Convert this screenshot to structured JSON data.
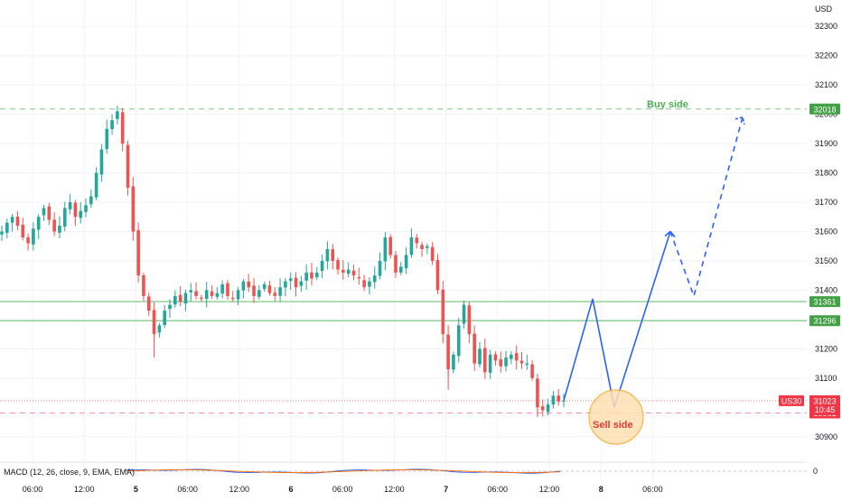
{
  "currency": "USD",
  "symbol": "US30",
  "colors": {
    "up": "#26a69a",
    "down": "#ef5350",
    "buy_line": "#81c784",
    "buy_text": "#4caf50",
    "level_line": "#66bb6a",
    "level_badge": "#43a047",
    "sell_line": "#f48fb1",
    "sell_badge": "#f23645",
    "sell_text": "#e53935",
    "projection": "#2962ff",
    "sell_zone_fill": "#ffe0b2",
    "sell_zone_stroke": "#f9a825",
    "axis_text": "#131722",
    "grid": "#f0f3fa"
  },
  "indicator": {
    "label": "MACD (12, 26, close, 9, EMA, EMA)",
    "zero_label": "0"
  },
  "annotations": {
    "buy_label": "Buy side",
    "sell_label": "Sell side",
    "current_price": "31023",
    "countdown": "10:45"
  },
  "chart_data": {
    "type": "candlestick",
    "ylim": [
      30850,
      32390
    ],
    "y_ticks": [
      32300,
      32200,
      32100,
      32000,
      31900,
      31800,
      31700,
      31600,
      31500,
      31400,
      31300,
      31200,
      31100,
      30900
    ],
    "x_ticks": [
      "06:00",
      "12:00",
      "5",
      "06:00",
      "12:00",
      "6",
      "06:00",
      "12:00",
      "7",
      "06:00",
      "12:00",
      "8",
      "06:00"
    ],
    "x_ticks_bold": [
      "5",
      "6",
      "7",
      "8"
    ],
    "levels": [
      {
        "name": "buy-side-level",
        "price": 32018,
        "label": "32018",
        "style": "dashed"
      },
      {
        "name": "resistance-level",
        "price": 31361,
        "label": "31361",
        "style": "solid"
      },
      {
        "name": "support-level",
        "price": 31296,
        "label": "31296",
        "style": "solid"
      },
      {
        "name": "sell-side-level",
        "price": 30981,
        "label": "30981",
        "style": "dashed"
      }
    ],
    "price_path": [
      31600,
      31630,
      31650,
      31620,
      31580,
      31560,
      31610,
      31650,
      31680,
      31640,
      31600,
      31620,
      31680,
      31700,
      31650,
      31670,
      31690,
      31720,
      31800,
      31880,
      31950,
      31980,
      32010,
      31900,
      31750,
      31600,
      31450,
      31380,
      31330,
      31250,
      31280,
      31330,
      31350,
      31380,
      31360,
      31390,
      31400,
      31380,
      31370,
      31400,
      31380,
      31390,
      31420,
      31380,
      31370,
      31400,
      31430,
      31410,
      31380,
      31400,
      31420,
      31390,
      31380,
      31410,
      31430,
      31440,
      31410,
      31430,
      31460,
      31440,
      31460,
      31500,
      31540,
      31500,
      31470,
      31460,
      31470,
      31450,
      31440,
      31410,
      31430,
      31450,
      31500,
      31580,
      31520,
      31460,
      31480,
      31520,
      31580,
      31560,
      31540,
      31550,
      31500,
      31400,
      31250,
      31130,
      31180,
      31280,
      31350,
      31250,
      31150,
      31200,
      31120,
      31180,
      31160,
      31140,
      31170,
      31180,
      31160,
      31150,
      31150,
      31100,
      31000,
      30990,
      31010,
      31040,
      31020,
      31023
    ],
    "projection_path": [
      31023,
      31370,
      31000,
      31600,
      31380,
      31990
    ]
  }
}
